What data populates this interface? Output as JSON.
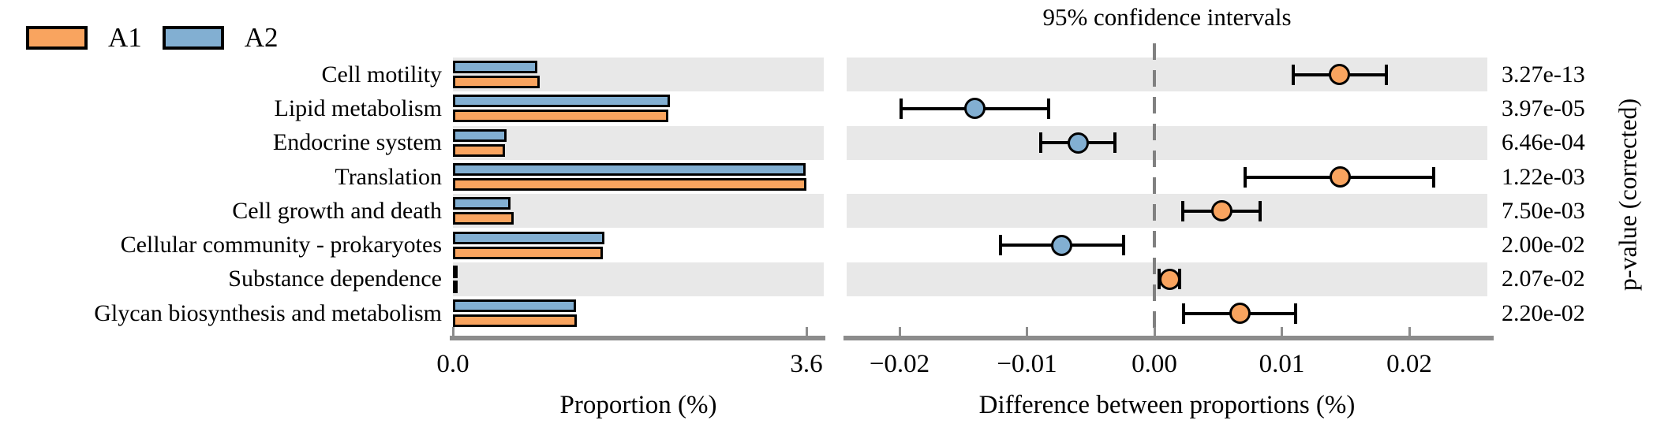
{
  "title": "95% confidence intervals",
  "legend": [
    {
      "label": "A1",
      "color_key": "a1"
    },
    {
      "label": "A2",
      "color_key": "a2"
    }
  ],
  "colors": {
    "a1": "#F9A45F",
    "a2": "#82AFD2",
    "band": "#E8E8E8",
    "axis": "#8C8C8C",
    "dash": "#808080",
    "outline": "#000000"
  },
  "left_axis": {
    "label": "Proportion (%)",
    "tick_values": [
      0.0,
      3.6
    ],
    "tick_labels": [
      "0.0",
      "3.6"
    ]
  },
  "right_axis": {
    "label": "Difference between proportions (%)",
    "tick_values": [
      -0.02,
      -0.01,
      0.0,
      0.01,
      0.02
    ],
    "tick_labels": [
      "−0.02",
      "−0.01",
      "0.00",
      "0.01",
      "0.02"
    ]
  },
  "pvalue_axis_label": "p-value (corrected)",
  "chart_data": {
    "type": "extended-error-bar",
    "categories": [
      "Cell motility",
      "Lipid metabolism",
      "Endocrine system",
      "Translation",
      "Cell growth and death",
      "Cellular community - prokaryotes",
      "Substance dependence",
      "Glycan biosynthesis and metabolism"
    ],
    "series": [
      {
        "name": "A1",
        "values": [
          0.88,
          2.19,
          0.53,
          3.6,
          0.62,
          1.53,
          0.04,
          1.26
        ]
      },
      {
        "name": "A2",
        "values": [
          0.86,
          2.21,
          0.55,
          3.59,
          0.59,
          1.54,
          0.04,
          1.25
        ]
      }
    ],
    "proportion_axis_range": [
      0,
      3.78
    ],
    "differences": [
      {
        "value": 0.0145,
        "ci": [
          0.0109,
          0.0182
        ],
        "enriched": "A1"
      },
      {
        "value": -0.0141,
        "ci": [
          -0.0199,
          -0.0083
        ],
        "enriched": "A2"
      },
      {
        "value": -0.006,
        "ci": [
          -0.0089,
          -0.0031
        ],
        "enriched": "A2"
      },
      {
        "value": 0.0146,
        "ci": [
          0.0071,
          0.0219
        ],
        "enriched": "A1"
      },
      {
        "value": 0.0053,
        "ci": [
          0.0022,
          0.0083
        ],
        "enriched": "A1"
      },
      {
        "value": -0.0073,
        "ci": [
          -0.0121,
          -0.0024
        ],
        "enriched": "A2"
      },
      {
        "value": 0.0012,
        "ci": [
          0.0004,
          0.002
        ],
        "enriched": "A1"
      },
      {
        "value": 0.0067,
        "ci": [
          0.0023,
          0.0111
        ],
        "enriched": "A1"
      }
    ],
    "difference_axis_range": [
      -0.0243,
      0.0262
    ],
    "p_values": [
      "3.27e-13",
      "3.97e-05",
      "6.46e-04",
      "1.22e-03",
      "7.50e-03",
      "2.00e-02",
      "2.07e-02",
      "2.20e-02"
    ],
    "grid": "off",
    "legend_position": "top-left"
  }
}
